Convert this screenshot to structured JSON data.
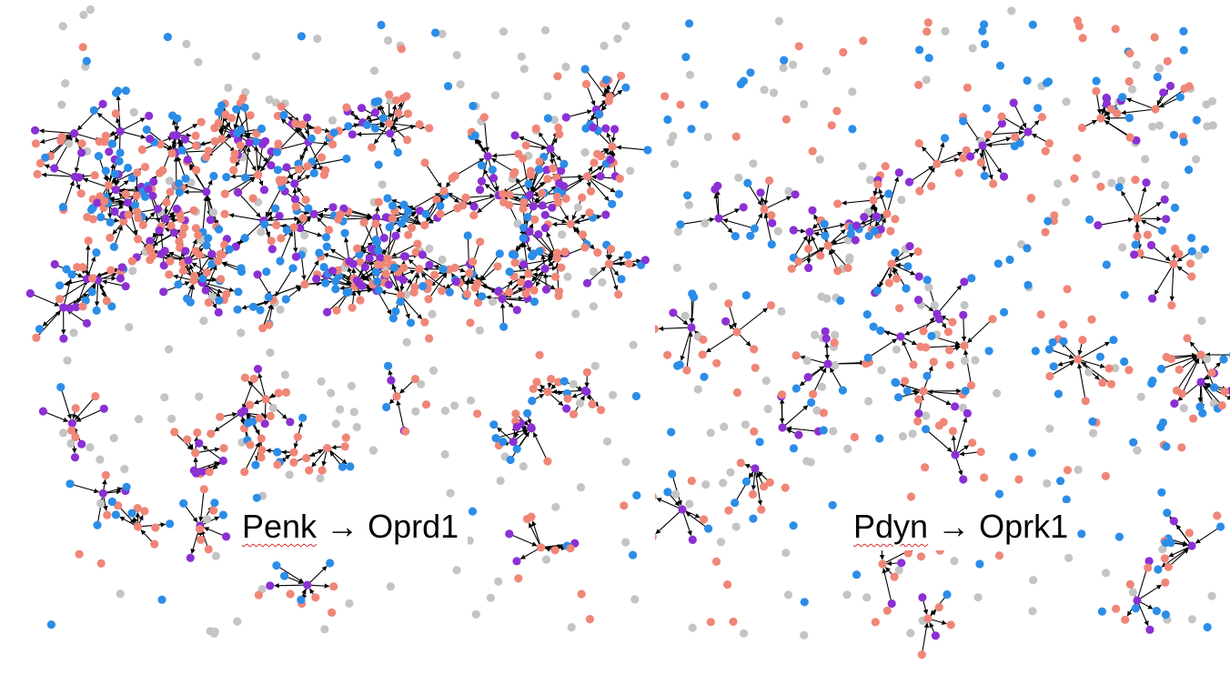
{
  "colors": {
    "sender": "#f08677",
    "receiver_left": "#2b8de8",
    "both": "#8b30d4",
    "background": "#c4c4c4",
    "receiver_right": "#2b8de8",
    "edge": "#000000"
  },
  "left_panel": {
    "ligand": "Penk",
    "arrow": "→",
    "receptor": "Oprd1"
  },
  "right_panel": {
    "ligand": "Pdyn",
    "arrow": "→",
    "receptor": "Oprk1"
  }
}
